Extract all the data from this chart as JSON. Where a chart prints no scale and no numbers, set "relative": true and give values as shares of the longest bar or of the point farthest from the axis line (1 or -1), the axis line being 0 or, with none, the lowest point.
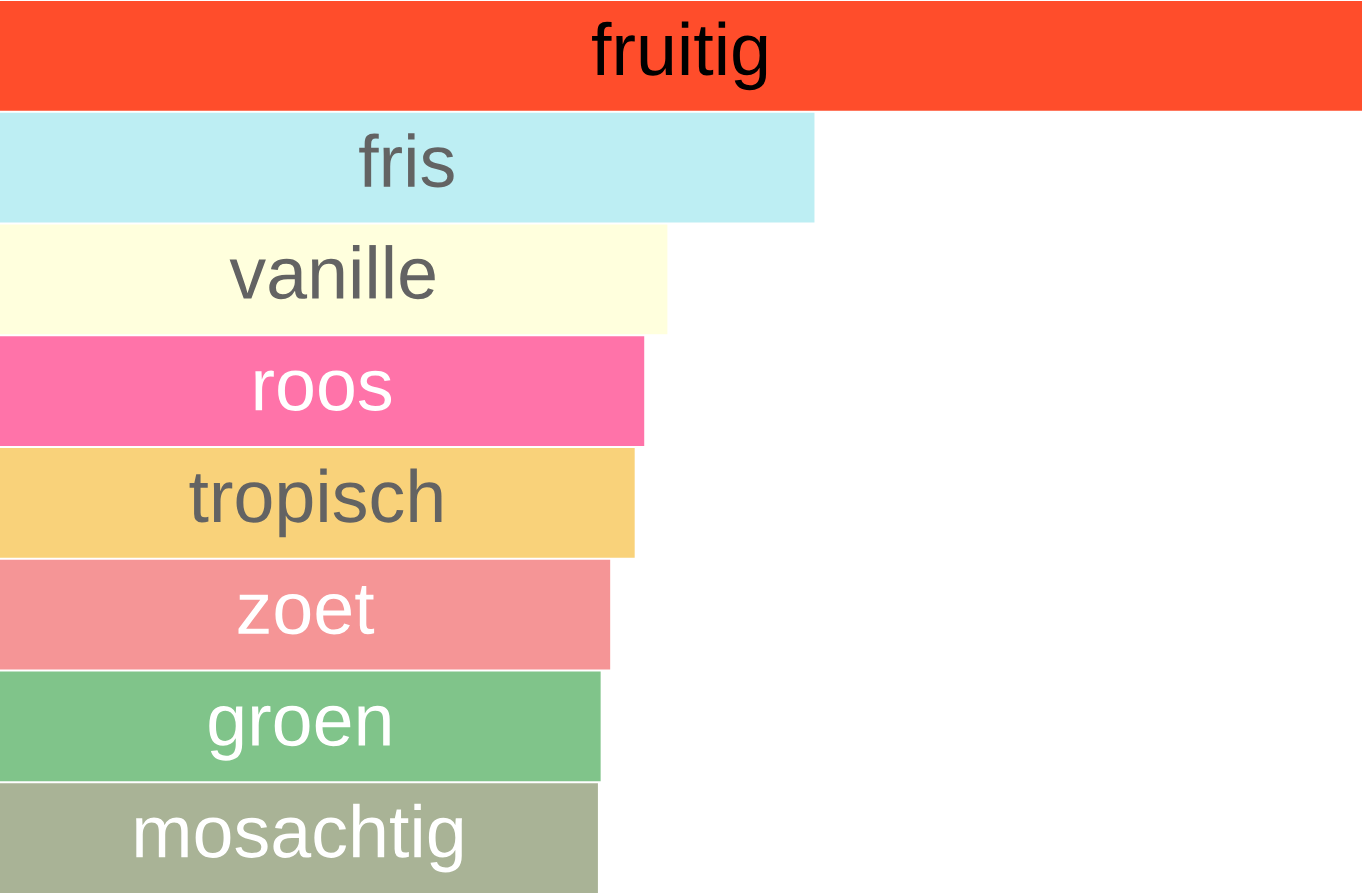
{
  "chart_data": {
    "type": "bar",
    "orientation": "horizontal",
    "relative": true,
    "categories": [
      "fruitig",
      "fris",
      "vanille",
      "roos",
      "tropisch",
      "zoet",
      "groen",
      "mosachtig"
    ],
    "values": [
      1,
      0.598,
      0.49,
      0.473,
      0.466,
      0.448,
      0.441,
      0.439
    ],
    "colors": [
      "#ff4d2b",
      "#bdeef3",
      "#ffffdd",
      "#ff73a9",
      "#f9d27a",
      "#f59596",
      "#80c48a",
      "#a9b396"
    ]
  }
}
